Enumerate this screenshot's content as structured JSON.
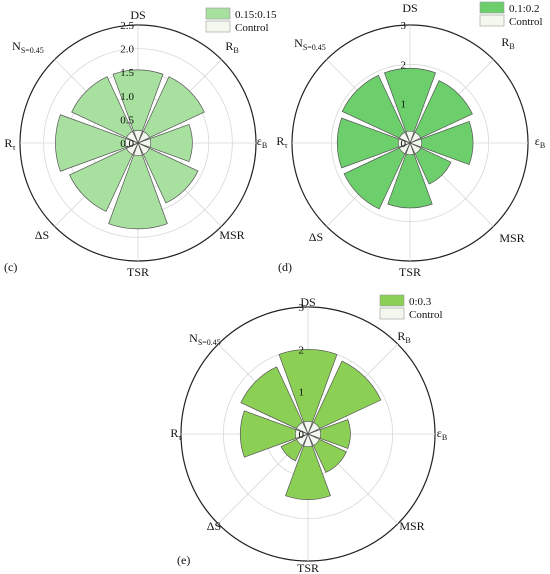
{
  "chart_data": [
    {
      "type": "rose",
      "panel_label": "(c)",
      "axes": [
        "DS",
        "R_B",
        "ε_B",
        "MSR",
        "TSR",
        "ΔS",
        "R_τ",
        "N_S=0.45"
      ],
      "rlim": [
        0,
        2.5
      ],
      "ticks": [
        "0.0",
        "0.5",
        "1.0",
        "1.5",
        "2.0",
        "2.5"
      ],
      "series": [
        {
          "name": "0.15:0.15",
          "color": "#a8e0a0",
          "values": [
            1.55,
            1.55,
            1.15,
            1.4,
            1.82,
            1.6,
            1.75,
            1.55
          ]
        },
        {
          "name": "Control",
          "color": "#f2f8ee",
          "values": [
            0.27,
            0.27,
            0.27,
            0.27,
            0.27,
            0.27,
            0.27,
            0.27
          ]
        }
      ]
    },
    {
      "type": "rose",
      "panel_label": "(d)",
      "axes": [
        "DS",
        "R_B",
        "ε_B",
        "MSR",
        "TSR",
        "ΔS",
        "R_τ",
        "N_S=0.45"
      ],
      "rlim": [
        0,
        3
      ],
      "ticks": [
        "0",
        "1",
        "2",
        "3"
      ],
      "series": [
        {
          "name": "0.1:0.2",
          "color": "#6ccf6c",
          "values": [
            1.9,
            1.75,
            1.6,
            1.15,
            1.65,
            1.85,
            1.85,
            1.9
          ]
        },
        {
          "name": "Control",
          "color": "#f2f8ee",
          "values": [
            0.3,
            0.3,
            0.3,
            0.3,
            0.3,
            0.3,
            0.3,
            0.3
          ]
        }
      ]
    },
    {
      "type": "rose",
      "panel_label": "(e)",
      "axes": [
        "DS",
        "R_B",
        "ε_B",
        "MSR",
        "TSR",
        "ΔS",
        "R_τ",
        "N_S=0.45"
      ],
      "rlim": [
        0,
        3
      ],
      "ticks": [
        "0",
        "1",
        "2",
        "3"
      ],
      "series": [
        {
          "name": "0:0.3",
          "color": "#8ccf55",
          "values": [
            2.0,
            1.9,
            1.0,
            1.0,
            1.55,
            0.7,
            1.6,
            1.75
          ]
        },
        {
          "name": "Control",
          "color": "#f2f8ee",
          "values": [
            0.3,
            0.3,
            0.3,
            0.3,
            0.3,
            0.3,
            0.3,
            0.3
          ]
        }
      ]
    }
  ],
  "axis_labels": [
    {
      "base": "DS",
      "sub": ""
    },
    {
      "base": "R",
      "sub": "B"
    },
    {
      "base": "ε",
      "sub": "B"
    },
    {
      "base": "MSR",
      "sub": ""
    },
    {
      "base": "TSR",
      "sub": ""
    },
    {
      "base": "ΔS",
      "sub": ""
    },
    {
      "base": "R",
      "sub": "τ"
    },
    {
      "base": "N",
      "sub": "S=0.45"
    }
  ]
}
